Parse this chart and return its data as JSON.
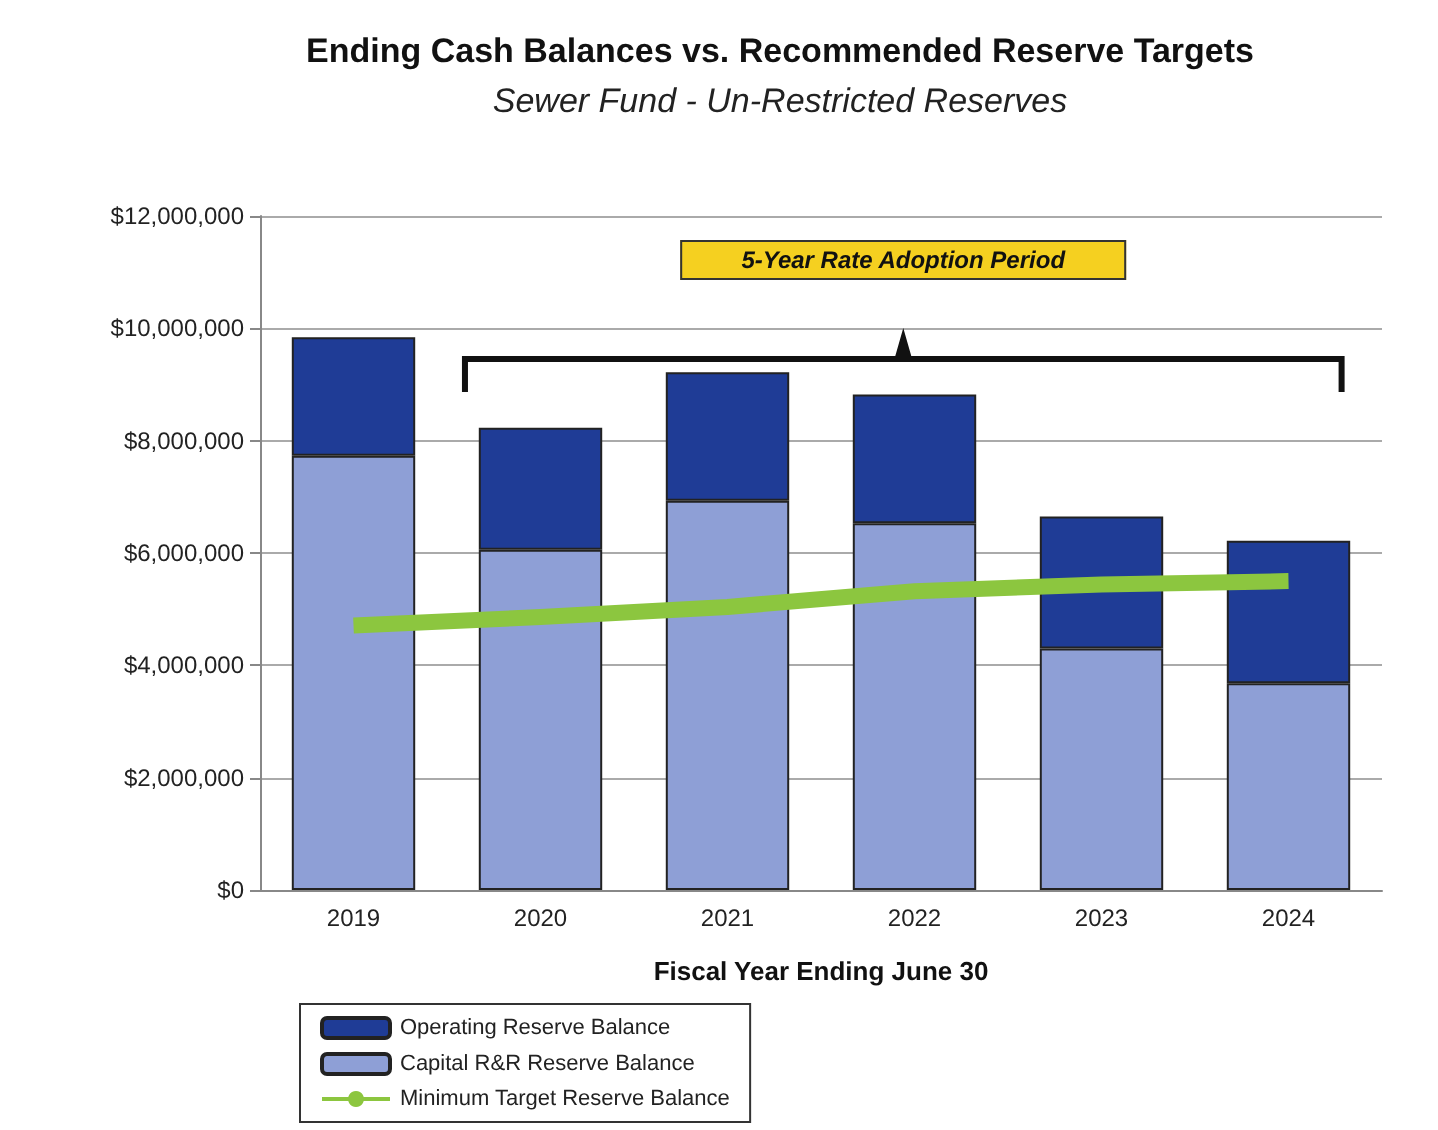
{
  "chart_data": {
    "type": "bar",
    "stacked": true,
    "title": "Ending Cash Balances vs. Recommended Reserve Targets",
    "subtitle": "Sewer Fund - Un-Restricted Reserves",
    "xlabel": "Fiscal Year Ending June 30",
    "categories": [
      "2019",
      "2020",
      "2021",
      "2022",
      "2023",
      "2024"
    ],
    "series": [
      {
        "name": "Capital R&R Reserve Balance",
        "color": "#8e9fd6",
        "values": [
          7730000,
          6060000,
          6930000,
          6530000,
          4300000,
          3680000
        ]
      },
      {
        "name": "Operating Reserve Balance",
        "color": "#1f3c96",
        "values": [
          2110000,
          2170000,
          2290000,
          2290000,
          2350000,
          2540000
        ]
      },
      {
        "name": "Minimum Target Reserve Balance",
        "type": "line",
        "color": "#8cc63f",
        "marker": "none",
        "values": [
          4710000,
          4860000,
          5040000,
          5320000,
          5440000,
          5500000
        ]
      }
    ],
    "ylim": [
      0,
      12000000
    ],
    "yticks": [
      {
        "value": 0,
        "label": "$0"
      },
      {
        "value": 2000000,
        "label": "$2,000,000"
      },
      {
        "value": 4000000,
        "label": "$4,000,000"
      },
      {
        "value": 6000000,
        "label": "$6,000,000"
      },
      {
        "value": 8000000,
        "label": "$8,000,000"
      },
      {
        "value": 10000000,
        "label": "$10,000,000"
      },
      {
        "value": 12000000,
        "label": "$12,000,000"
      }
    ],
    "grid": "y",
    "legend": "bottom left",
    "annotations": [
      "5-Year Rate Adoption Period"
    ]
  }
}
